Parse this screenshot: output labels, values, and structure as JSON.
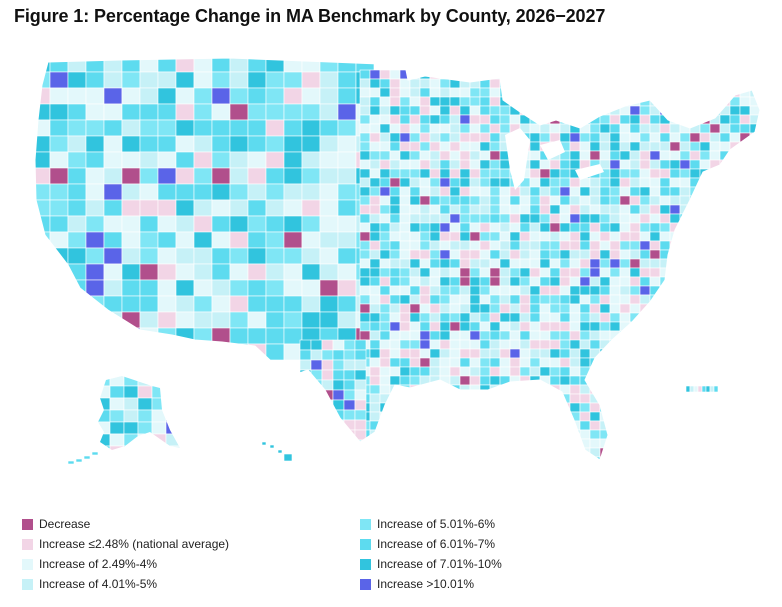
{
  "title": "Figure 1: Percentage Change in MA Benchmark by County, 2026−2027",
  "colors": {
    "decrease": "#b14f8c",
    "le_national_avg": "#f2d5e6",
    "inc_249_4": "#e3f8fb",
    "inc_401_5": "#c6f1f7",
    "inc_501_6": "#7fe6f5",
    "inc_601_7": "#5ddbef",
    "inc_701_10": "#31c4de",
    "inc_gt_1001": "#5a64e8",
    "border": "#ffffff"
  },
  "legend": {
    "left": [
      {
        "label": "Decrease",
        "color": "#b14f8c"
      },
      {
        "label": "Increase ≤2.48% (national average)",
        "color": "#f2d5e6"
      },
      {
        "label": "Increase of 2.49%-4%",
        "color": "#e3f8fb"
      },
      {
        "label": "Increase of 4.01%-5%",
        "color": "#c6f1f7"
      }
    ],
    "right": [
      {
        "label": "Increase of 5.01%-6%",
        "color": "#7fe6f5"
      },
      {
        "label": "Increase of 6.01%-7%",
        "color": "#5ddbef"
      },
      {
        "label": "Increase of 7.01%-10%",
        "color": "#31c4de"
      },
      {
        "label": "Increase >10.01%",
        "color": "#5a64e8"
      }
    ]
  }
}
